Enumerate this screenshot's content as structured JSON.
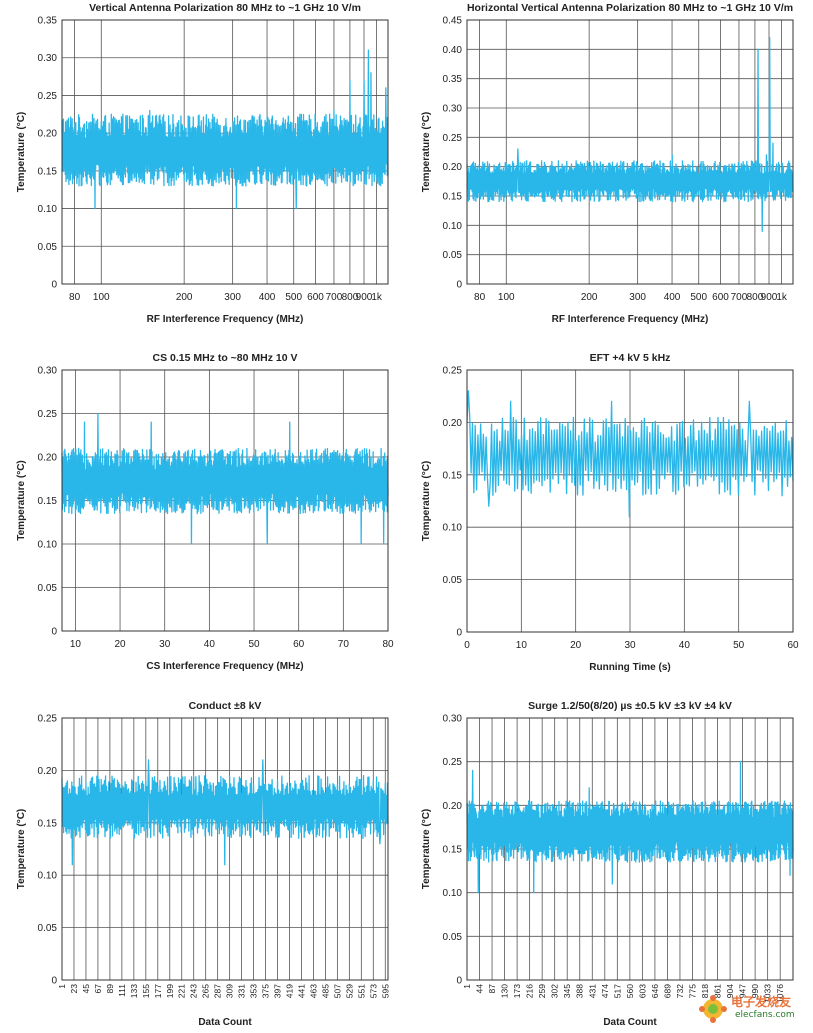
{
  "colors": {
    "series": "#29b6e8",
    "grid": "#555555",
    "axis": "#333333"
  },
  "watermark": {
    "text": "电子发烧友",
    "url": "elecfans.com"
  },
  "chart_data": [
    {
      "type": "line",
      "title": "Vertical Antenna Polarization 80 MHz to ~1 GHz 10 V/m",
      "xlabel": "RF Interference Frequency (MHz)",
      "ylabel": "Temperature (°C)",
      "xscale": "log",
      "xlim": [
        72,
        1100
      ],
      "ylim": [
        0,
        0.35
      ],
      "xticks": [
        80,
        100,
        200,
        300,
        400,
        500,
        600,
        700,
        800,
        900,
        1000
      ],
      "xticklabels": [
        "80",
        "100",
        "200",
        "300",
        "400",
        "500",
        "600",
        "700",
        "800",
        "900",
        "1k"
      ],
      "yticks": [
        0,
        0.05,
        0.1,
        0.15,
        0.2,
        0.25,
        0.3,
        0.35
      ],
      "yticklabels": [
        "0",
        "0.05",
        "0.10",
        "0.15",
        "0.20",
        "0.25",
        "0.30",
        "0.35"
      ],
      "grid": true,
      "series": [
        {
          "style": "noise",
          "n": 900,
          "baseline": 0.175,
          "range": [
            0.13,
            0.225
          ],
          "spikes": [
            {
              "x": 95,
              "y": 0.1
            },
            {
              "x": 150,
              "y": 0.23
            },
            {
              "x": 310,
              "y": 0.1
            },
            {
              "x": 510,
              "y": 0.1
            },
            {
              "x": 700,
              "y": 0.23
            },
            {
              "x": 800,
              "y": 0.27
            },
            {
              "x": 900,
              "y": 0.27
            },
            {
              "x": 935,
              "y": 0.31
            },
            {
              "x": 955,
              "y": 0.28
            },
            {
              "x": 1080,
              "y": 0.26
            }
          ]
        }
      ]
    },
    {
      "type": "line",
      "title": "Horizontal Vertical Antenna Polarization 80 MHz to ~1 GHz 10 V/m",
      "xlabel": "RF Interference Frequency (MHz)",
      "ylabel": "Temperature (°C)",
      "xscale": "log",
      "xlim": [
        72,
        1100
      ],
      "ylim": [
        0,
        0.45
      ],
      "xticks": [
        80,
        100,
        200,
        300,
        400,
        500,
        600,
        700,
        800,
        900,
        1000
      ],
      "xticklabels": [
        "80",
        "100",
        "200",
        "300",
        "400",
        "500",
        "600",
        "700",
        "800",
        "900",
        "1k"
      ],
      "yticks": [
        0,
        0.05,
        0.1,
        0.15,
        0.2,
        0.25,
        0.3,
        0.35,
        0.4,
        0.45
      ],
      "yticklabels": [
        "0",
        "0.05",
        "0.10",
        "0.15",
        "0.20",
        "0.25",
        "0.30",
        "0.35",
        "0.40",
        "0.45"
      ],
      "grid": true,
      "series": [
        {
          "style": "noise",
          "n": 700,
          "baseline": 0.175,
          "range": [
            0.14,
            0.21
          ],
          "spikes": [
            {
              "x": 110,
              "y": 0.23
            },
            {
              "x": 400,
              "y": 0.22
            },
            {
              "x": 820,
              "y": 0.4
            },
            {
              "x": 850,
              "y": 0.09
            },
            {
              "x": 880,
              "y": 0.22
            },
            {
              "x": 905,
              "y": 0.42
            },
            {
              "x": 930,
              "y": 0.24
            }
          ]
        }
      ]
    },
    {
      "type": "line",
      "title": "CS 0.15 MHz to ~80 MHz 10 V",
      "xlabel": "CS Interference Frequency (MHz)",
      "ylabel": "Temperature (°C)",
      "xscale": "linear",
      "xlim": [
        7,
        80
      ],
      "ylim": [
        0,
        0.3
      ],
      "xticks": [
        10,
        20,
        30,
        40,
        50,
        60,
        70,
        80
      ],
      "xticklabels": [
        "10",
        "20",
        "30",
        "40",
        "50",
        "60",
        "70",
        "80"
      ],
      "yticks": [
        0,
        0.05,
        0.1,
        0.15,
        0.2,
        0.25,
        0.3
      ],
      "yticklabels": [
        "0",
        "0.05",
        "0.10",
        "0.15",
        "0.20",
        "0.25",
        "0.30"
      ],
      "grid": true,
      "series": [
        {
          "style": "noise",
          "n": 900,
          "baseline": 0.172,
          "range": [
            0.135,
            0.21
          ],
          "spikes": [
            {
              "x": 15,
              "y": 0.25
            },
            {
              "x": 12,
              "y": 0.24
            },
            {
              "x": 27,
              "y": 0.24
            },
            {
              "x": 36,
              "y": 0.1
            },
            {
              "x": 53,
              "y": 0.1
            },
            {
              "x": 58,
              "y": 0.24
            },
            {
              "x": 74,
              "y": 0.1
            },
            {
              "x": 79,
              "y": 0.1
            }
          ]
        }
      ]
    },
    {
      "type": "line",
      "title": "EFT +4 kV 5 kHz",
      "xlabel": "Running Time (s)",
      "ylabel": "Temperature (°C)",
      "xscale": "linear",
      "xlim": [
        0,
        60
      ],
      "ylim": [
        0,
        0.25
      ],
      "xticks": [
        0,
        10,
        20,
        30,
        40,
        50,
        60
      ],
      "xticklabels": [
        "0",
        "10",
        "20",
        "30",
        "40",
        "50",
        "60"
      ],
      "yticks": [
        0,
        0.05,
        0.1,
        0.15,
        0.2,
        0.25
      ],
      "yticklabels": [
        "0",
        "0.05",
        "0.10",
        "0.15",
        "0.20",
        "0.25"
      ],
      "grid": true,
      "series": [
        {
          "style": "noise",
          "n": 240,
          "baseline": 0.168,
          "range": [
            0.13,
            0.205
          ],
          "spikes": [
            {
              "x": 0.3,
              "y": 0.23
            },
            {
              "x": 4,
              "y": 0.12
            },
            {
              "x": 8,
              "y": 0.22
            },
            {
              "x": 26.5,
              "y": 0.22
            },
            {
              "x": 30,
              "y": 0.11
            },
            {
              "x": 52,
              "y": 0.22
            },
            {
              "x": 58,
              "y": 0.13
            }
          ]
        }
      ]
    },
    {
      "type": "line",
      "title": "Conduct ±8 kV",
      "xlabel": "Data Count",
      "ylabel": "Temperature (°C)",
      "xscale": "linear",
      "xlim": [
        1,
        600
      ],
      "ylim": [
        0,
        0.25
      ],
      "xticks": [
        1,
        23,
        45,
        67,
        89,
        111,
        133,
        155,
        177,
        199,
        221,
        243,
        265,
        287,
        309,
        331,
        353,
        375,
        397,
        419,
        441,
        463,
        485,
        507,
        529,
        551,
        573,
        595
      ],
      "xticklabels": [
        "1",
        "23",
        "45",
        "67",
        "89",
        "111",
        "133",
        "155",
        "177",
        "199",
        "221",
        "243",
        "265",
        "287",
        "309",
        "331",
        "353",
        "375",
        "397",
        "419",
        "441",
        "463",
        "485",
        "507",
        "529",
        "551",
        "573",
        "595"
      ],
      "yticks": [
        0,
        0.05,
        0.1,
        0.15,
        0.2,
        0.25
      ],
      "yticklabels": [
        "0",
        "0.05",
        "0.10",
        "0.15",
        "0.20",
        "0.25"
      ],
      "grid": true,
      "series": [
        {
          "style": "noise",
          "n": 600,
          "baseline": 0.165,
          "range": [
            0.135,
            0.195
          ],
          "spikes": [
            {
              "x": 20,
              "y": 0.11
            },
            {
              "x": 160,
              "y": 0.21
            },
            {
              "x": 300,
              "y": 0.11
            },
            {
              "x": 370,
              "y": 0.21
            },
            {
              "x": 585,
              "y": 0.13
            }
          ]
        }
      ]
    },
    {
      "type": "line",
      "title": "Surge 1.2/50(8/20) µs ±0.5 kV ±3 kV ±4 kV",
      "xlabel": "Data Count",
      "ylabel": "Temperature (°C)",
      "xscale": "linear",
      "xlim": [
        1,
        1120
      ],
      "ylim": [
        0,
        0.3
      ],
      "xticks": [
        1,
        44,
        87,
        130,
        173,
        216,
        259,
        302,
        345,
        388,
        431,
        474,
        517,
        560,
        603,
        646,
        689,
        732,
        775,
        818,
        861,
        904,
        947,
        990,
        1033,
        1076
      ],
      "xticklabels": [
        "1",
        "44",
        "87",
        "130",
        "173",
        "216",
        "259",
        "302",
        "345",
        "388",
        "431",
        "474",
        "517",
        "560",
        "603",
        "646",
        "689",
        "732",
        "775",
        "818",
        "861",
        "904",
        "947",
        "990",
        "1033",
        "1076"
      ],
      "yticks": [
        0,
        0.05,
        0.1,
        0.15,
        0.2,
        0.25,
        0.3
      ],
      "yticklabels": [
        "0",
        "0.05",
        "0.10",
        "0.15",
        "0.20",
        "0.25",
        "0.30"
      ],
      "grid": true,
      "series": [
        {
          "style": "noise",
          "n": 1100,
          "baseline": 0.172,
          "range": [
            0.135,
            0.205
          ],
          "spikes": [
            {
              "x": 20,
              "y": 0.24
            },
            {
              "x": 40,
              "y": 0.1
            },
            {
              "x": 230,
              "y": 0.1
            },
            {
              "x": 420,
              "y": 0.22
            },
            {
              "x": 500,
              "y": 0.11
            },
            {
              "x": 940,
              "y": 0.25
            },
            {
              "x": 1110,
              "y": 0.12
            }
          ]
        }
      ]
    }
  ]
}
